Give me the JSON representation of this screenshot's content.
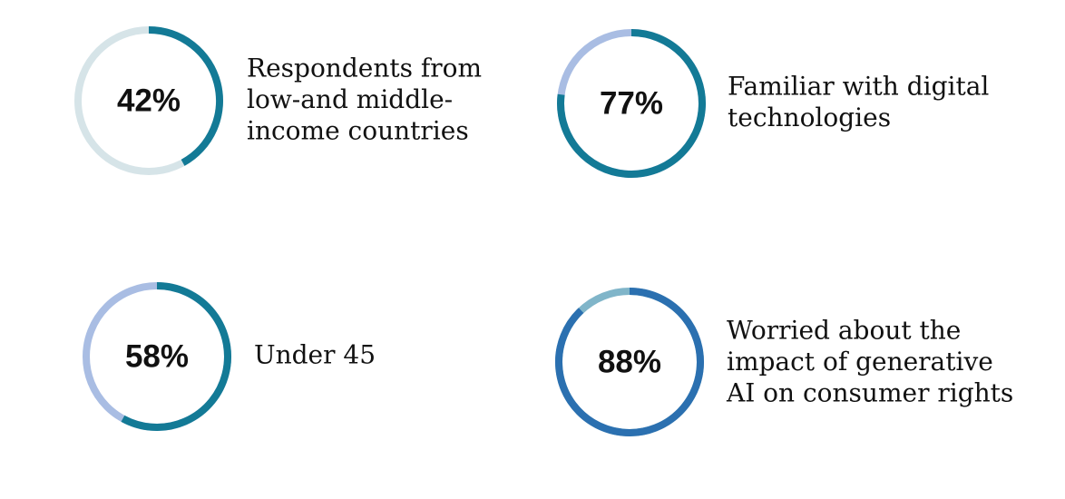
{
  "chart_data": [
    {
      "type": "donut",
      "values": [
        42
      ],
      "value_labels": [
        "42%"
      ],
      "ylim": [
        0,
        100
      ],
      "color": "#137a96",
      "track_color": "#d6e4e8",
      "label_lines": [
        "Respondents from",
        "low-and middle-",
        "income countries"
      ]
    },
    {
      "type": "donut",
      "values": [
        77
      ],
      "value_labels": [
        "77%"
      ],
      "ylim": [
        0,
        100
      ],
      "color": "#137a96",
      "track_color": "#a9bde3",
      "label_lines": [
        "Familiar with digital",
        "technologies"
      ]
    },
    {
      "type": "donut",
      "values": [
        58
      ],
      "value_labels": [
        "58%"
      ],
      "ylim": [
        0,
        100
      ],
      "color": "#137a96",
      "track_color": "#a9bde3",
      "label_lines": [
        "Under 45"
      ]
    },
    {
      "type": "donut",
      "values": [
        88
      ],
      "value_labels": [
        "88%"
      ],
      "ylim": [
        0,
        100
      ],
      "color": "#2b70b0",
      "track_color": "#80b5c9",
      "label_lines": [
        "Worried about the",
        "impact of generative",
        "AI on consumer rights"
      ]
    }
  ]
}
